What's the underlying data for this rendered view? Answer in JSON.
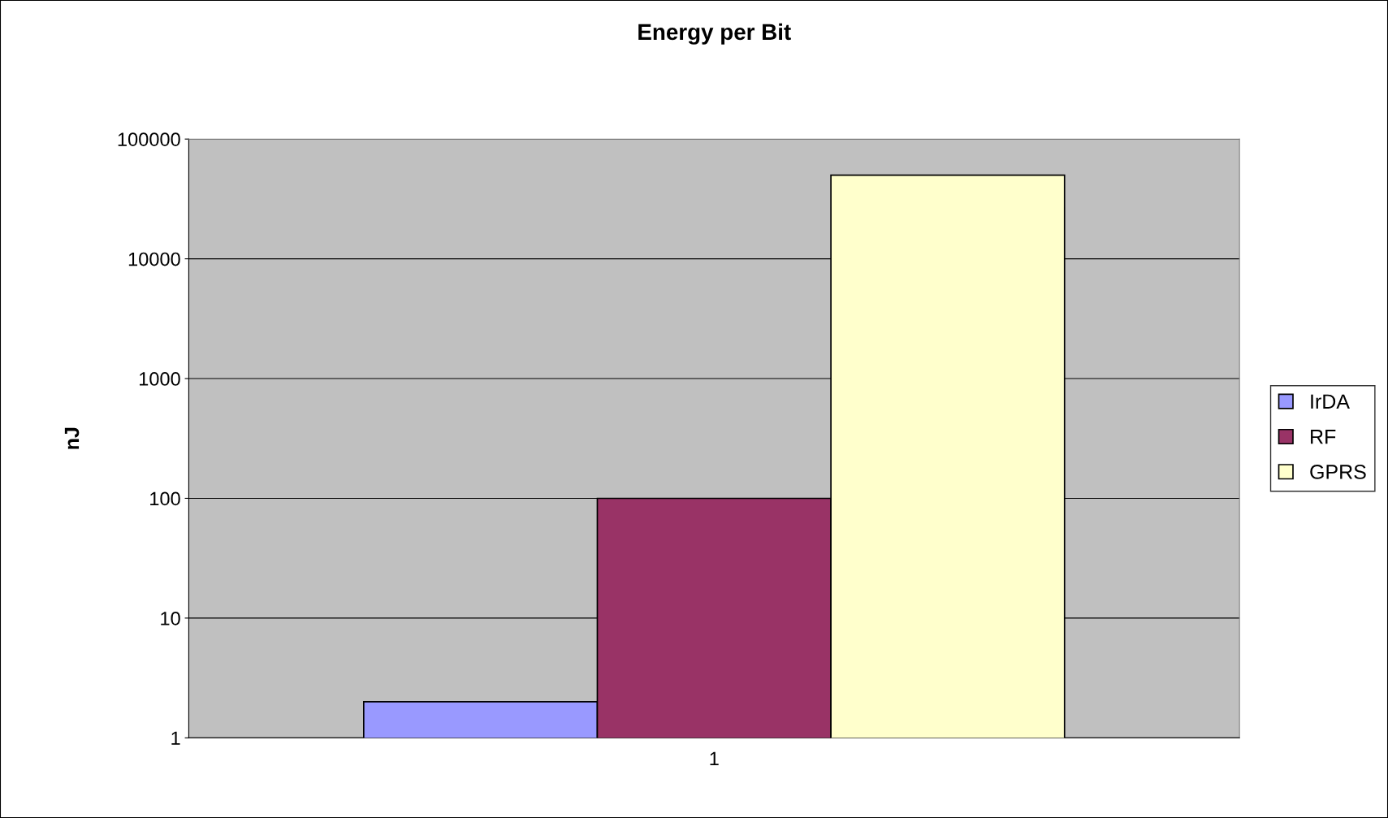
{
  "chart_data": {
    "type": "bar",
    "title": "Energy per Bit",
    "ylabel": "nJ",
    "categories": [
      "1"
    ],
    "series": [
      {
        "name": "IrDA",
        "color": "#9999ff",
        "values": [
          2
        ]
      },
      {
        "name": "RF",
        "color": "#993366",
        "values": [
          100
        ]
      },
      {
        "name": "GPRS",
        "color": "#ffffcc",
        "values": [
          50000
        ]
      }
    ],
    "log": true,
    "ylim": [
      1,
      100000
    ],
    "yticks": [
      1,
      10,
      100,
      1000,
      10000,
      100000
    ],
    "grid": "y",
    "legend": "right"
  }
}
